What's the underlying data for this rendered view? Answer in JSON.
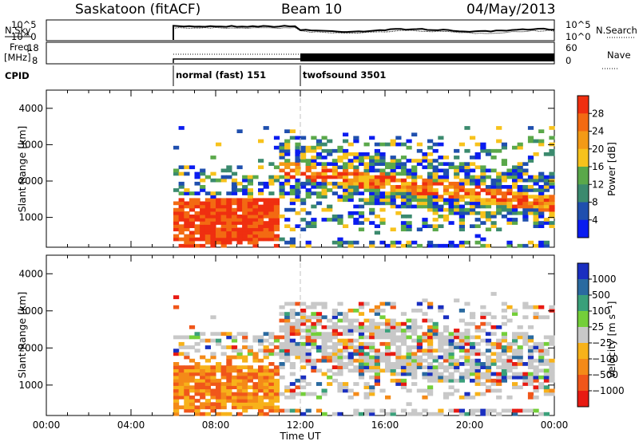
{
  "header": {
    "station": "Saskatoon (fitACF)",
    "beam": "Beam 10",
    "date": "04/May/2013"
  },
  "panels": {
    "nsky_label": "N.Sky",
    "nsky_ticks": [
      "10^5",
      "10^0"
    ],
    "nsearch_label": "N.Search",
    "nsearch_ticks": [
      "10^5",
      "10^0"
    ],
    "freq_label": "Freq.",
    "freq_unit": "[MHz]",
    "freq_ticks": [
      "18",
      "8"
    ],
    "nave_label": "Nave",
    "nave_ticks": [
      "60",
      "0"
    ],
    "cpid_label": "CPID",
    "cpid_segments": [
      {
        "name": "normal (fast) 151",
        "start_h": 6.0,
        "end_h": 12.0
      },
      {
        "name": "twofsound 3501",
        "start_h": 12.0,
        "end_h": 24.0
      }
    ]
  },
  "colors": {
    "power_scale": [
      "#0a1cf0",
      "#1f4fae",
      "#3b8a6e",
      "#5aa84a",
      "#f7c21c",
      "#f39a16",
      "#f36a12",
      "#ef2f10"
    ],
    "velocity_scale": [
      "#1a2fc0",
      "#2a6aa0",
      "#3aa07a",
      "#74cf3a",
      "#c8c8c8",
      "#f7b21a",
      "#f48a18",
      "#f0561a",
      "#e81a12"
    ],
    "grid_line": "#c0c0c0"
  },
  "chart_data": [
    {
      "type": "heatmap",
      "name": "power",
      "xlabel": "",
      "ylabel": "Slant Range [km]",
      "xlim": [
        0,
        24
      ],
      "ylim": [
        180,
        4500
      ],
      "yticks": [
        1000,
        2000,
        3000,
        4000
      ],
      "colorbar_label": "Power [dB]",
      "colorbar_ticks": [
        "4",
        "8",
        "12",
        "16",
        "20",
        "24",
        "28"
      ],
      "clim": [
        0,
        30
      ]
    },
    {
      "type": "heatmap",
      "name": "velocity",
      "xlabel": "Time UT",
      "ylabel": "Slant Range [km]",
      "xlim": [
        0,
        24
      ],
      "ylim": [
        180,
        4500
      ],
      "xticks": [
        "00:00",
        "04:00",
        "08:00",
        "12:00",
        "16:00",
        "20:00",
        "00:00"
      ],
      "yticks": [
        1000,
        2000,
        3000,
        4000
      ],
      "colorbar_label": "Velocity [m s⁻¹]",
      "colorbar_ticks": [
        "1000",
        "500",
        "100",
        "25",
        "−25",
        "−100",
        "−500",
        "−1000"
      ],
      "clim": [
        -1000,
        1000
      ]
    }
  ]
}
